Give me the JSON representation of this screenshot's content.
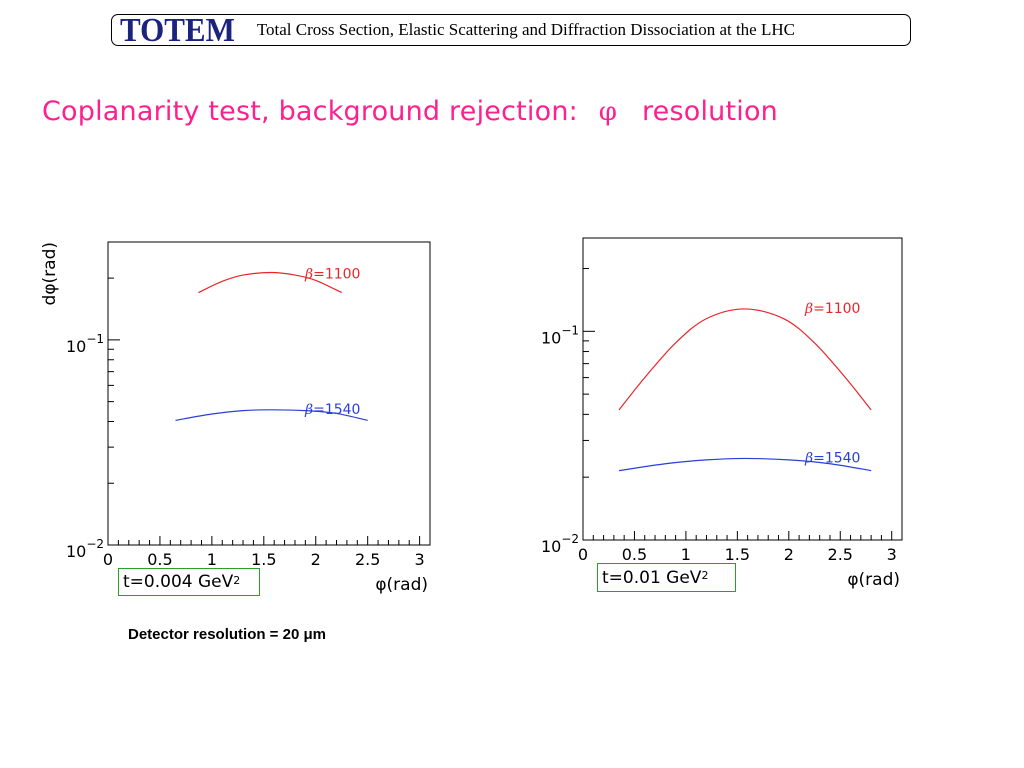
{
  "header": {
    "logo": "TOTEM",
    "title": "Total Cross Section, Elastic Scattering and Diffraction Dissociation at the LHC"
  },
  "slide": {
    "title_prefix": "Coplanarity test, background rejection:",
    "title_symbol": "φ",
    "title_suffix": "resolution",
    "title_color": "#ff1f8e"
  },
  "caption": "Detector resolution = 20 μm",
  "chart_data": [
    {
      "type": "line",
      "ylabel": "dφ(rad)",
      "xlabel": "φ(rad)",
      "xlim": [
        0,
        3.1
      ],
      "ylim": [
        0.01,
        0.3
      ],
      "yscale": "log",
      "x_ticks": [
        "0",
        "0.5",
        "1",
        "1.5",
        "2",
        "2.5",
        "3"
      ],
      "y_ticks": [
        {
          "value": 0.1,
          "base": "10",
          "exp": "−1"
        },
        {
          "value": 0.01,
          "base": "10",
          "exp": "−2"
        }
      ],
      "annotation": {
        "text": "t=0.004 GeV",
        "sup": "2"
      },
      "series": [
        {
          "name": "β=1100",
          "color": "#e8262a",
          "x": [
            0.87,
            1.1,
            1.3,
            1.57,
            1.8,
            2.0,
            2.25
          ],
          "y": [
            0.17,
            0.193,
            0.207,
            0.213,
            0.207,
            0.195,
            0.17
          ]
        },
        {
          "name": "β=1540",
          "color": "#2b3fd8",
          "x": [
            0.65,
            1.0,
            1.3,
            1.57,
            1.9,
            2.2,
            2.5
          ],
          "y": [
            0.0405,
            0.0435,
            0.0452,
            0.0456,
            0.0452,
            0.0438,
            0.0405
          ]
        }
      ]
    },
    {
      "type": "line",
      "ylabel": "",
      "xlabel": "φ(rad)",
      "xlim": [
        0,
        3.1
      ],
      "ylim": [
        0.01,
        0.28
      ],
      "yscale": "log",
      "x_ticks": [
        "0",
        "0.5",
        "1",
        "1.5",
        "2",
        "2.5",
        "3"
      ],
      "y_ticks": [
        {
          "value": 0.1,
          "base": "10",
          "exp": "−1"
        },
        {
          "value": 0.01,
          "base": "10",
          "exp": "−2"
        }
      ],
      "annotation": {
        "text": "t=0.01 GeV",
        "sup": "2"
      },
      "series": [
        {
          "name": "β=1100",
          "color": "#e8262a",
          "x": [
            0.35,
            0.6,
            0.9,
            1.2,
            1.57,
            1.95,
            2.25,
            2.55,
            2.8
          ],
          "y": [
            0.042,
            0.06,
            0.088,
            0.115,
            0.128,
            0.115,
            0.088,
            0.06,
            0.042
          ]
        },
        {
          "name": "β=1540",
          "color": "#2b3fd8",
          "x": [
            0.35,
            0.8,
            1.2,
            1.57,
            2.0,
            2.4,
            2.8
          ],
          "y": [
            0.0215,
            0.0232,
            0.0242,
            0.0246,
            0.0242,
            0.0232,
            0.0215
          ]
        }
      ]
    }
  ]
}
